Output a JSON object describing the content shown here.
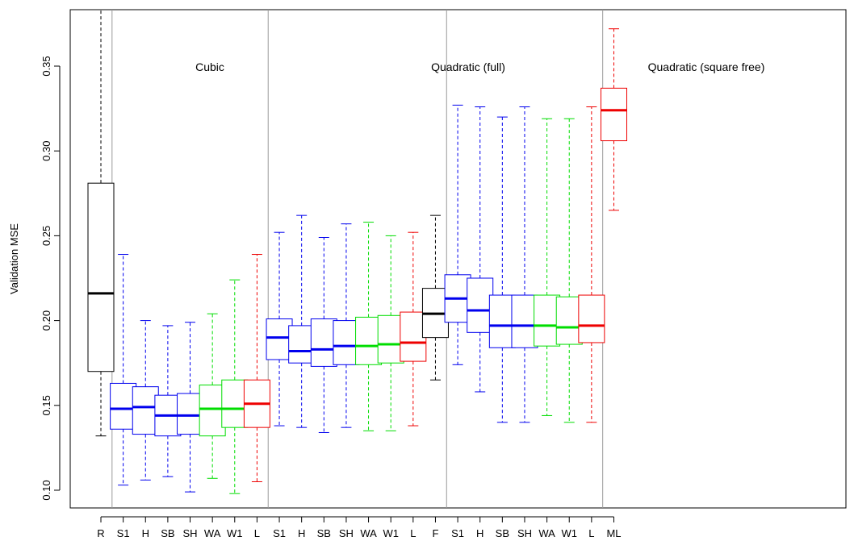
{
  "chart_data": {
    "type": "boxplot",
    "ylabel": "Validation MSE",
    "ylim": [
      0.085,
      0.385
    ],
    "yticks": [
      "0.10",
      "0.15",
      "0.20",
      "0.25",
      "0.30",
      "0.35"
    ],
    "ytick_values": [
      0.1,
      0.15,
      0.2,
      0.25,
      0.3,
      0.35
    ],
    "group_labels": [
      "Cubic",
      "Quadratic (full)",
      "Quadratic (square free)"
    ],
    "group_separators_after": [
      1,
      8,
      16,
      23
    ],
    "colors": {
      "black": "#000000",
      "blue": "#0000ee",
      "green": "#00dd00",
      "red": "#ee0000",
      "separator": "#999999"
    },
    "boxes": [
      {
        "label": "R",
        "color": "black",
        "whislo": 0.132,
        "q1": 0.17,
        "med": 0.216,
        "q3": 0.281,
        "whishi": 0.385
      },
      {
        "label": "S1",
        "color": "blue",
        "whislo": 0.103,
        "q1": 0.136,
        "med": 0.148,
        "q3": 0.163,
        "whishi": 0.239
      },
      {
        "label": "H",
        "color": "blue",
        "whislo": 0.106,
        "q1": 0.133,
        "med": 0.149,
        "q3": 0.161,
        "whishi": 0.2
      },
      {
        "label": "SB",
        "color": "blue",
        "whislo": 0.108,
        "q1": 0.132,
        "med": 0.144,
        "q3": 0.156,
        "whishi": 0.197
      },
      {
        "label": "SH",
        "color": "blue",
        "whislo": 0.099,
        "q1": 0.133,
        "med": 0.144,
        "q3": 0.157,
        "whishi": 0.199
      },
      {
        "label": "WA",
        "color": "green",
        "whislo": 0.107,
        "q1": 0.132,
        "med": 0.148,
        "q3": 0.162,
        "whishi": 0.204
      },
      {
        "label": "W1",
        "color": "green",
        "whislo": 0.098,
        "q1": 0.137,
        "med": 0.148,
        "q3": 0.165,
        "whishi": 0.224
      },
      {
        "label": "L",
        "color": "red",
        "whislo": 0.105,
        "q1": 0.137,
        "med": 0.151,
        "q3": 0.165,
        "whishi": 0.239
      },
      {
        "label": "S1",
        "color": "blue",
        "whislo": 0.138,
        "q1": 0.177,
        "med": 0.19,
        "q3": 0.201,
        "whishi": 0.252
      },
      {
        "label": "H",
        "color": "blue",
        "whislo": 0.137,
        "q1": 0.175,
        "med": 0.182,
        "q3": 0.197,
        "whishi": 0.262
      },
      {
        "label": "SB",
        "color": "blue",
        "whislo": 0.134,
        "q1": 0.173,
        "med": 0.183,
        "q3": 0.201,
        "whishi": 0.249
      },
      {
        "label": "SH",
        "color": "blue",
        "whislo": 0.137,
        "q1": 0.174,
        "med": 0.185,
        "q3": 0.2,
        "whishi": 0.257
      },
      {
        "label": "WA",
        "color": "green",
        "whislo": 0.135,
        "q1": 0.174,
        "med": 0.185,
        "q3": 0.202,
        "whishi": 0.258
      },
      {
        "label": "W1",
        "color": "green",
        "whislo": 0.135,
        "q1": 0.175,
        "med": 0.186,
        "q3": 0.203,
        "whishi": 0.25
      },
      {
        "label": "L",
        "color": "red",
        "whislo": 0.138,
        "q1": 0.176,
        "med": 0.187,
        "q3": 0.205,
        "whishi": 0.252
      },
      {
        "label": "F",
        "color": "black",
        "whislo": 0.165,
        "q1": 0.19,
        "med": 0.204,
        "q3": 0.219,
        "whishi": 0.262
      },
      {
        "label": "S1",
        "color": "blue",
        "whislo": 0.174,
        "q1": 0.199,
        "med": 0.213,
        "q3": 0.227,
        "whishi": 0.327
      },
      {
        "label": "H",
        "color": "blue",
        "whislo": 0.158,
        "q1": 0.193,
        "med": 0.206,
        "q3": 0.225,
        "whishi": 0.326
      },
      {
        "label": "SB",
        "color": "blue",
        "whislo": 0.14,
        "q1": 0.184,
        "med": 0.197,
        "q3": 0.215,
        "whishi": 0.32
      },
      {
        "label": "SH",
        "color": "blue",
        "whislo": 0.14,
        "q1": 0.184,
        "med": 0.197,
        "q3": 0.215,
        "whishi": 0.326
      },
      {
        "label": "WA",
        "color": "green",
        "whislo": 0.144,
        "q1": 0.185,
        "med": 0.197,
        "q3": 0.215,
        "whishi": 0.319
      },
      {
        "label": "W1",
        "color": "green",
        "whislo": 0.14,
        "q1": 0.186,
        "med": 0.196,
        "q3": 0.214,
        "whishi": 0.319
      },
      {
        "label": "L",
        "color": "red",
        "whislo": 0.14,
        "q1": 0.187,
        "med": 0.197,
        "q3": 0.215,
        "whishi": 0.326
      },
      {
        "label": "ML",
        "color": "red",
        "whislo": 0.265,
        "q1": 0.306,
        "med": 0.324,
        "q3": 0.337,
        "whishi": 0.372
      }
    ]
  }
}
